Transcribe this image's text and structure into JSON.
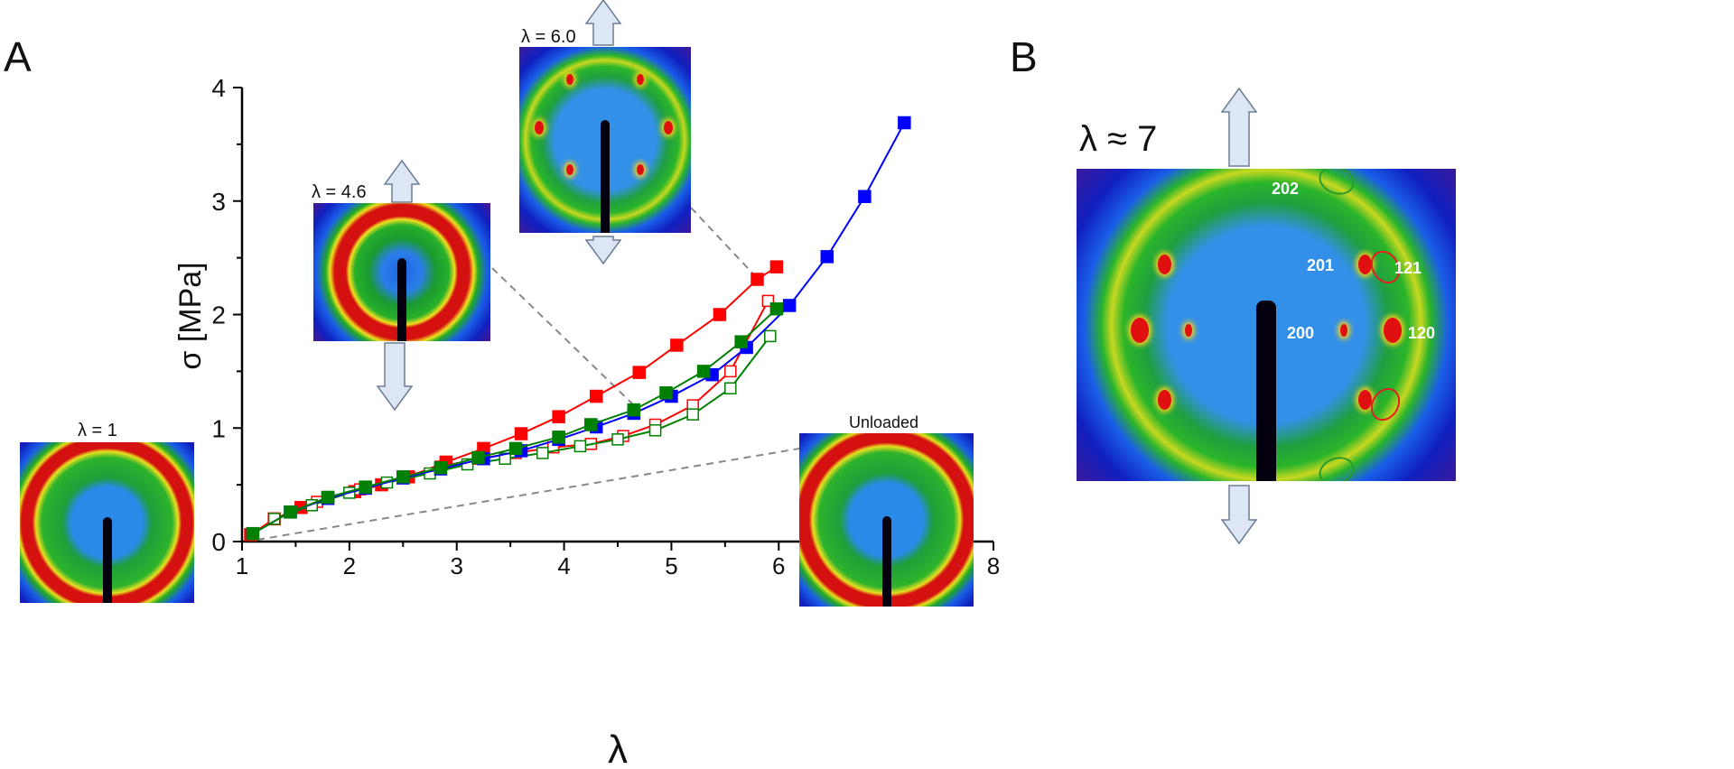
{
  "panels": {
    "a": "A",
    "b": "B"
  },
  "insets": {
    "lambda1": "λ = 1",
    "lambda46": "λ = 4.6",
    "lambda60": "λ = 6.0",
    "unloaded": "Unloaded"
  },
  "panel_b": {
    "title": "λ ≈ 7",
    "reflections": [
      "202",
      "201",
      "121",
      "200",
      "120"
    ]
  },
  "colors": {
    "red": "#ff0000",
    "blue": "#0000ff",
    "green": "#008000",
    "arrow_fill": "#dce6f4",
    "arrow_stroke": "#6b7d94"
  },
  "chart_data": {
    "type": "line",
    "xlabel": "λ",
    "ylabel": "σ [MPa]",
    "xlim": [
      1,
      8
    ],
    "ylim": [
      0,
      4
    ],
    "xticks": [
      "1",
      "2",
      "3",
      "4",
      "5",
      "6",
      "7",
      "8"
    ],
    "yticks": [
      "0",
      "1",
      "2",
      "3",
      "4"
    ],
    "grid": false,
    "series": [
      {
        "name": "red-filled",
        "color": "#ff0000",
        "filled": true,
        "x": [
          1.08,
          1.3,
          1.55,
          1.8,
          2.05,
          2.3,
          2.55,
          2.9,
          3.25,
          3.6,
          3.95,
          4.3,
          4.7,
          5.05,
          5.45,
          5.8,
          5.98
        ],
        "y": [
          0.06,
          0.2,
          0.3,
          0.38,
          0.44,
          0.5,
          0.57,
          0.7,
          0.82,
          0.95,
          1.1,
          1.28,
          1.49,
          1.73,
          2.0,
          2.31,
          2.42
        ]
      },
      {
        "name": "red-open",
        "color": "#ff0000",
        "filled": false,
        "x": [
          1.3,
          1.7,
          2.1,
          2.5,
          2.85,
          3.2,
          3.55,
          3.9,
          4.25,
          4.55,
          4.85,
          5.2,
          5.55,
          5.9
        ],
        "y": [
          0.2,
          0.35,
          0.46,
          0.57,
          0.66,
          0.73,
          0.78,
          0.83,
          0.86,
          0.93,
          1.03,
          1.2,
          1.5,
          2.12
        ]
      },
      {
        "name": "green-open",
        "color": "#008000",
        "filled": false,
        "x": [
          1.3,
          1.65,
          2.0,
          2.35,
          2.75,
          3.1,
          3.45,
          3.8,
          4.15,
          4.5,
          4.85,
          5.2,
          5.55,
          5.92
        ],
        "y": [
          0.2,
          0.32,
          0.43,
          0.52,
          0.6,
          0.68,
          0.73,
          0.78,
          0.84,
          0.9,
          0.98,
          1.12,
          1.35,
          1.81
        ]
      },
      {
        "name": "blue-filled",
        "color": "#0000ff",
        "filled": true,
        "x": [
          1.1,
          1.45,
          1.8,
          2.15,
          2.5,
          2.85,
          3.25,
          3.6,
          3.95,
          4.3,
          4.65,
          5.0,
          5.38,
          5.7,
          6.1,
          6.45,
          6.8,
          7.17
        ],
        "y": [
          0.07,
          0.26,
          0.38,
          0.47,
          0.56,
          0.64,
          0.73,
          0.8,
          0.9,
          1.01,
          1.13,
          1.28,
          1.47,
          1.71,
          2.08,
          2.51,
          3.04,
          3.69
        ]
      },
      {
        "name": "green-filled",
        "color": "#008000",
        "filled": true,
        "x": [
          1.1,
          1.45,
          1.8,
          2.15,
          2.5,
          2.85,
          3.2,
          3.55,
          3.95,
          4.25,
          4.65,
          4.95,
          5.3,
          5.65,
          5.98
        ],
        "y": [
          0.07,
          0.26,
          0.39,
          0.48,
          0.57,
          0.65,
          0.74,
          0.82,
          0.92,
          1.03,
          1.16,
          1.31,
          1.5,
          1.76,
          2.05
        ]
      }
    ]
  }
}
